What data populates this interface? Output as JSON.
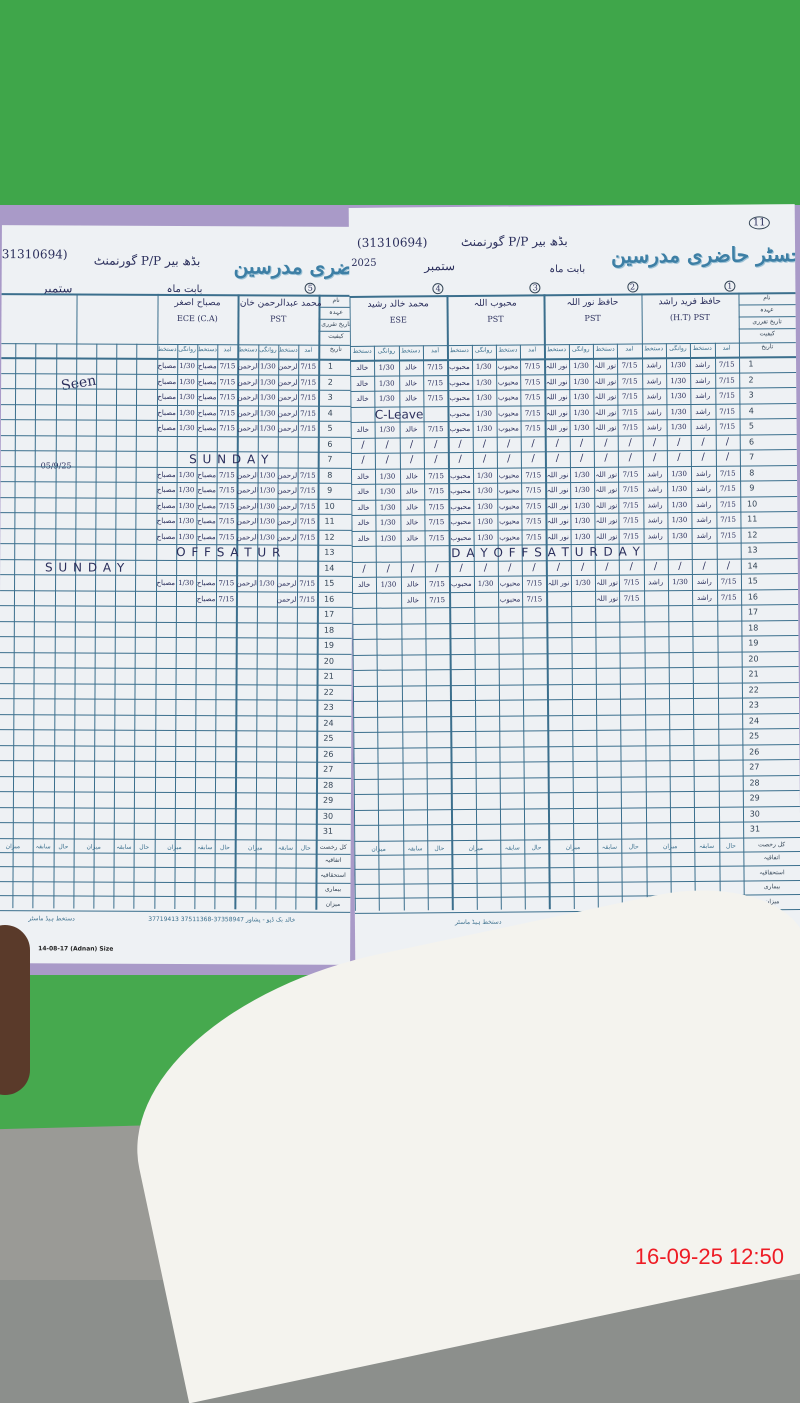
{
  "header": {
    "title": "رجسٹر حاضری مدرسین",
    "school": "گورنمنٹ P/P بڈھ بیر",
    "emis_right": "(31310694)",
    "emis_left": "31310694)",
    "month_label": "بابت ماہ",
    "month": "ستمبر",
    "year": "2025",
    "page_no": "11"
  },
  "row_labels": [
    "نام",
    "عہدہ",
    "تاریخ تقرری",
    "کیفیت",
    "تاریخ"
  ],
  "sub_headers": [
    "آمد",
    "دستخط",
    "روانگی",
    "دستخط"
  ],
  "right_page": {
    "teachers": [
      {
        "no": "1",
        "name": "حافظ فرید راشد",
        "post": "(H.T) PST",
        "sig": "راشد"
      },
      {
        "no": "2",
        "name": "حافظ نور اللہ",
        "post": "PST",
        "sig": "نور اللہ"
      },
      {
        "no": "3",
        "name": "محبوب اللہ",
        "post": "PST",
        "sig": "محبوب"
      },
      {
        "no": "4",
        "name": "محمد خالد رشید",
        "post": "ESE",
        "sig": "خالد"
      }
    ],
    "filled_rows": [
      1,
      2,
      3,
      4,
      5,
      8,
      9,
      10,
      11,
      12,
      15
    ],
    "partial_rows": [
      16
    ],
    "slash_rows": [
      6,
      7,
      14
    ],
    "special": {
      "row": 13,
      "text": "D A Y   O F F   S A T U R D A Y"
    },
    "leave": {
      "row": 4,
      "teacher": 3,
      "text": "C-Leave"
    }
  },
  "left_page": {
    "teachers": [
      {
        "no": "5",
        "name": "محمد عبدالرحمن خان",
        "post": "PST",
        "sig": "عبدالرحمن"
      },
      {
        "no": "",
        "name": "مصباح اصغر",
        "post": "ECE (C.A)",
        "sig": "مصباح"
      }
    ],
    "filled_rows": [
      1,
      2,
      3,
      4,
      5,
      8,
      9,
      10,
      11,
      12,
      15
    ],
    "partial_rows": [
      16
    ],
    "special": [
      {
        "row": 7,
        "text": "S   U   N   D   A   Y"
      },
      {
        "row": 13,
        "text": "O   F   F   S   A   T   U   R"
      },
      {
        "row": 14,
        "text": "S   U   N   D   A   Y"
      }
    ],
    "note": "Seen",
    "note_date": "05/9/25"
  },
  "times": {
    "arrival": "7/15",
    "departure": "1/30"
  },
  "summary": {
    "col_headers": [
      "حال",
      "سابقہ",
      "میزان"
    ],
    "corner": "کل رخصت",
    "rows": [
      "اتفاقیہ",
      "استحقاقیہ",
      "بیماری",
      "میزان"
    ]
  },
  "footer": {
    "printer": "خالد بک ڈپو - پشاور",
    "phones": "37719413 37511368-37358947",
    "signature_label": "دستخط ہیڈ ماسٹر",
    "print_code": "14-08-17 (Adnan) Size"
  },
  "timestamp": "16-09-25  12:50"
}
